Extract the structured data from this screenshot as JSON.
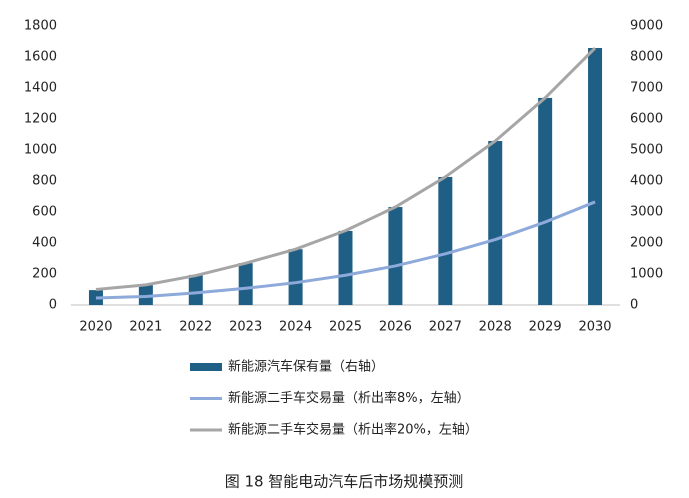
{
  "chart_data": {
    "type": "bar",
    "caption": "图 18 智能电动汽车后市场规模预测",
    "categories": [
      "2020",
      "2021",
      "2022",
      "2023",
      "2024",
      "2025",
      "2026",
      "2027",
      "2028",
      "2029",
      "2030"
    ],
    "series": [
      {
        "name": "新能源汽车保有量（右轴）",
        "type": "bar",
        "axis": "y2",
        "color": "#1f5f86",
        "values": [
          480,
          650,
          970,
          1350,
          1800,
          2390,
          3160,
          4130,
          5290,
          6680,
          8290
        ]
      },
      {
        "name": "新能源二手车交易量（析出率8%，左轴）",
        "type": "line",
        "color": "#8eaadb",
        "values": [
          45,
          55,
          78,
          108,
          144,
          192,
          252,
          330,
          422,
          535,
          665
        ]
      },
      {
        "name": "新能源二手车交易量（析出率20%，左轴）",
        "type": "line",
        "color": "#a6a6a6",
        "values": [
          100,
          130,
          190,
          270,
          360,
          480,
          632,
          826,
          1058,
          1336,
          1658
        ]
      }
    ],
    "ylim": [
      0,
      1800
    ],
    "yticks": [
      0,
      200,
      400,
      600,
      800,
      1000,
      1200,
      1400,
      1600,
      1800
    ],
    "y2lim": [
      0,
      9000
    ],
    "y2ticks": [
      0,
      1000,
      2000,
      3000,
      4000,
      5000,
      6000,
      7000,
      8000,
      9000
    ]
  }
}
